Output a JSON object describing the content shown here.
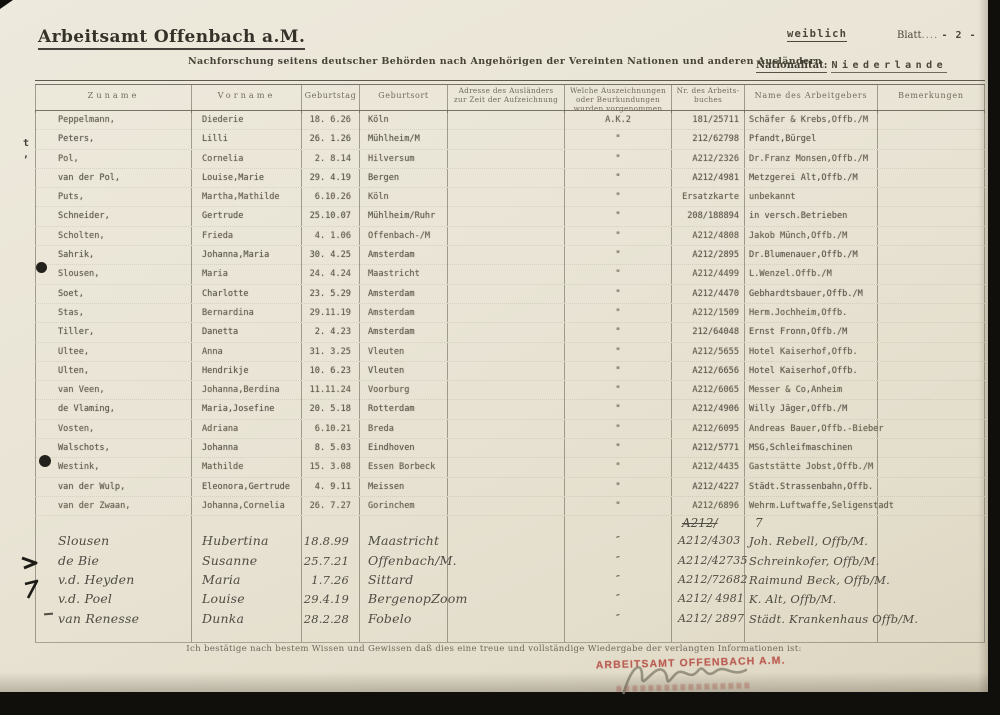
{
  "header": {
    "office": "Arbeitsamt Offenbach a.M.",
    "gender": "weiblich",
    "sheet_label": "Blatt",
    "sheet_leader": "....",
    "sheet_number": "- 2 -",
    "subtitle": "Nachforschung seitens deutscher Behörden nach Angehörigen der Vereinten Nationen und anderen Ausländern",
    "nationality_label": "Nationalität:",
    "nationality_value": "Niederlande"
  },
  "table": {
    "columns": [
      "Zuname",
      "Vorname",
      "Geburtstag",
      "Geburtsort",
      "Adresse des Ausländers zur Zeit der Aufzeichnung",
      "Welche Auszeichnungen oder Beurkundungen wurden vorgenommen",
      "Nr. des Arbeits- buches",
      "Name des Arbeitgebers",
      "Bemerkungen"
    ],
    "typed_rows": [
      [
        "Peppelmann,",
        "Diederie",
        "18. 6.26",
        "Köln",
        "",
        "A.K.2",
        "181/25711",
        "Schäfer & Krebs,Offb./M",
        ""
      ],
      [
        "Peters,",
        "Lilli",
        "26. 1.26",
        "Mühlheim/M",
        "",
        "\"",
        "212/62798",
        "Pfandt,Bürgel",
        ""
      ],
      [
        "Pol,",
        "Cornelia",
        "2. 8.14",
        "Hilversum",
        "",
        "\"",
        "A212/2326",
        "Dr.Franz Monsen,Offb./M",
        ""
      ],
      [
        "van der Pol,",
        "Louise,Marie",
        "29. 4.19",
        "Bergen",
        "",
        "\"",
        "A212/4981",
        "Metzgerei Alt,Offb./M",
        ""
      ],
      [
        "Puts,",
        "Martha,Mathilde",
        "6.10.26",
        "Köln",
        "",
        "\"",
        "Ersatzkarte",
        "unbekannt",
        ""
      ],
      [
        "Schneider,",
        "Gertrude",
        "25.10.07",
        "Mühlheim/Ruhr",
        "",
        "\"",
        "208/188894",
        "in versch.Betrieben",
        ""
      ],
      [
        "Scholten,",
        "Frieda",
        "4. 1.06",
        "Offenbach-/M",
        "",
        "\"",
        "A212/4808",
        "Jakob Münch,Offb./M",
        ""
      ],
      [
        "Sahrik,",
        "Johanna,Maria",
        "30. 4.25",
        "Amsterdam",
        "",
        "\"",
        "A212/2895",
        "Dr.Blumenauer,Offb./M",
        ""
      ],
      [
        "Slousen,",
        "Maria",
        "24. 4.24",
        "Maastricht",
        "",
        "\"",
        "A212/4499",
        "L.Wenzel.Offb./M",
        ""
      ],
      [
        "Soet,",
        "Charlotte",
        "23. 5.29",
        "Amsterdam",
        "",
        "\"",
        "A212/4470",
        "Gebhardtsbauer,Offb./M",
        ""
      ],
      [
        "Stas,",
        "Bernardina",
        "29.11.19",
        "Amsterdam",
        "",
        "\"",
        "A212/1509",
        "Herm.Jochheim,Offb.",
        ""
      ],
      [
        "Tiller,",
        "Danetta",
        "2. 4.23",
        "Amsterdam",
        "",
        "\"",
        "212/64048",
        "Ernst Fronn,Offb./M",
        ""
      ],
      [
        "Ultee,",
        "Anna",
        "31. 3.25",
        "Vleuten",
        "",
        "\"",
        "A212/5655",
        "Hotel Kaiserhof,Offb.",
        ""
      ],
      [
        "Ulten,",
        "Hendrikje",
        "10. 6.23",
        "Vleuten",
        "",
        "\"",
        "A212/6656",
        "Hotel Kaiserhof,Offb.",
        ""
      ],
      [
        "van Veen,",
        "Johanna,Berdina",
        "11.11.24",
        "Voorburg",
        "",
        "\"",
        "A212/6065",
        "Messer & Co,Anheim",
        ""
      ],
      [
        "de Vlaming,",
        "Maria,Josefine",
        "20. 5.18",
        "Rotterdam",
        "",
        "\"",
        "A212/4906",
        "Willy Jäger,Offb./M",
        ""
      ],
      [
        "Vosten,",
        "Adriana",
        "6.10.21",
        "Breda",
        "",
        "\"",
        "A212/6095",
        "Andreas Bauer,Offb.-Bieber",
        ""
      ],
      [
        "Walschots,",
        "Johanna",
        "8. 5.03",
        "Eindhoven",
        "",
        "\"",
        "A212/5771",
        "MSG,Schleifmaschinen",
        ""
      ],
      [
        "Westink,",
        "Mathilde",
        "15. 3.08",
        "Essen Borbeck",
        "",
        "\"",
        "A212/4435",
        "Gaststätte Jobst,Offb./M",
        ""
      ],
      [
        "van der Wulp,",
        "Eleonora,Gertrude",
        "4. 9.11",
        "Meissen",
        "",
        "\"",
        "A212/4227",
        "Städt.Strassenbahn,Offb.",
        ""
      ],
      [
        "van der Zwaan,",
        "Johanna,Cornelia",
        "26. 7.27",
        "Gorinchem",
        "",
        "\"",
        "A212/6896",
        "Wehrm.Luftwaffe,Seligenstadt",
        ""
      ]
    ],
    "inserted_note": {
      "nr": "A212/",
      "employer": "7"
    },
    "handwritten_rows": [
      [
        "Slousen",
        "Hubertina",
        "18.8.99",
        "Maastricht",
        "",
        "″",
        "A212/4303",
        "Joh. Rebell, Offb/M.",
        ""
      ],
      [
        "de Bie",
        "Susanne",
        "25.7.21",
        "Offenbach/M.",
        "",
        "″",
        "A212/42735",
        "Schreinkofer, Offb/M.",
        ""
      ],
      [
        "v.d. Heyden",
        "Maria",
        "1.7.26",
        "Sittard",
        "",
        "″",
        "A212/72682",
        "Raimund Beck, Offb/M.",
        ""
      ],
      [
        "v.d. Poel",
        "Louise",
        "29.4.19",
        "BergenopZoom",
        "",
        "″",
        "A212/ 4981",
        "K. Alt, Offb/M.",
        ""
      ],
      [
        "van Renesse",
        "Dunka",
        "28.2.28",
        "Fobelo",
        "",
        "″",
        "A212/ 2897",
        "Städt. Krankenhaus Offb/M.",
        ""
      ]
    ]
  },
  "footer": {
    "declaration": "Ich bestätige nach bestem Wissen und Gewissen daß dies eine treue und vollständige Wiedergabe der verlangten Informationen ist:",
    "stamp_text": "ARBEITSAMT OFFENBACH A.M.",
    "stamp_color": "#b5473e"
  }
}
